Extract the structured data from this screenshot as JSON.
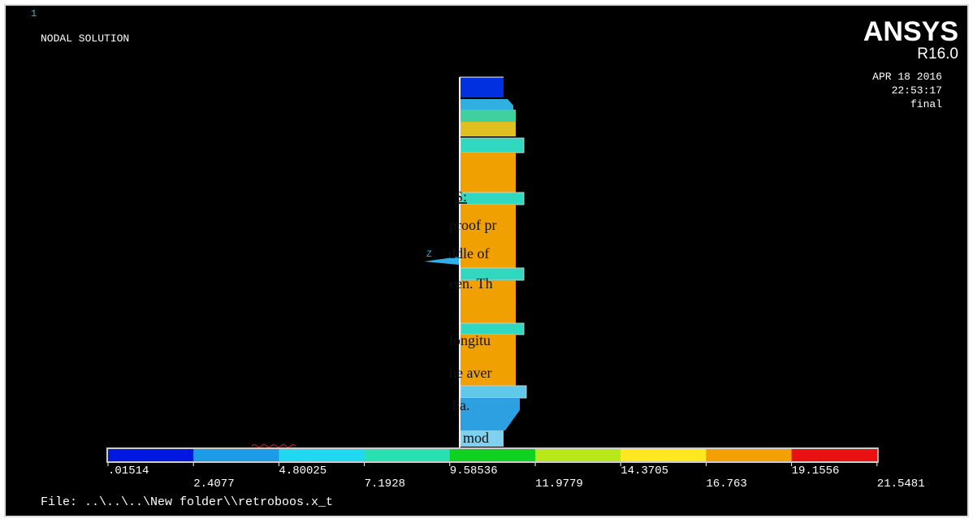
{
  "window": {
    "id": "1",
    "title": "NODAL SOLUTION",
    "brand": "ANSYS",
    "version": "R16.0",
    "date": "APR 18 2016",
    "time": "22:53:17",
    "label": "final",
    "axis": "Z"
  },
  "overlay_text": [
    "S:",
    "proof pr",
    "ddle of",
    "een. Th",
    "longitu",
    "he aver",
    "Pa.",
    "mod"
  ],
  "legend": {
    "colors": [
      "#0018e0",
      "#1e9be6",
      "#20d8f0",
      "#28e0b0",
      "#10d020",
      "#b8e818",
      "#ffe820",
      "#f4a000",
      "#e81010"
    ],
    "labels": [
      ".01514",
      "2.4077",
      "4.80025",
      "7.1928",
      "9.58536",
      "11.9779",
      "14.3705",
      "16.763",
      "19.1556",
      "21.5481"
    ]
  },
  "footer": {
    "file": "File: ..\\..\\..\\New folder\\\\retroboos.x_t"
  }
}
